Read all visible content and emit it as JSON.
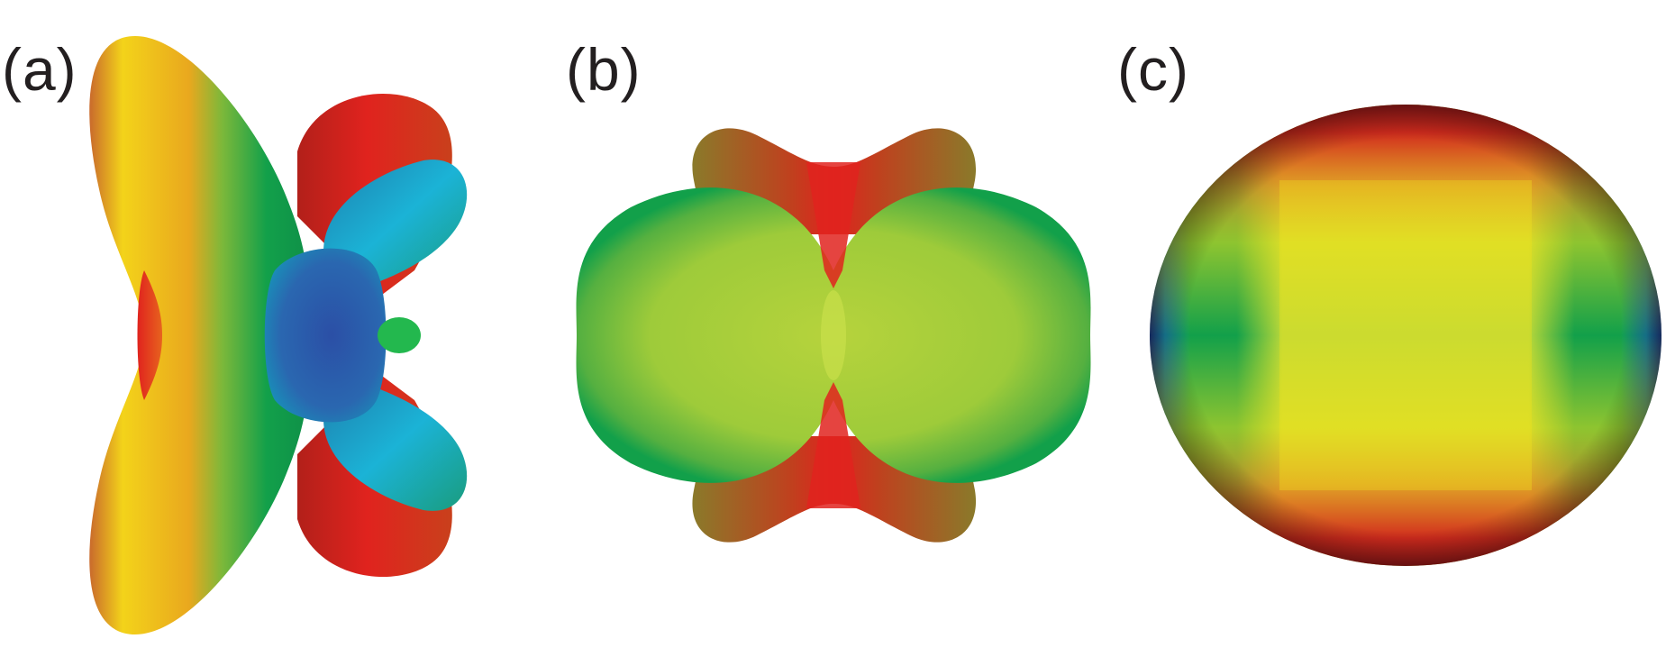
{
  "figure": {
    "panels": [
      {
        "label": "(a)"
      },
      {
        "label": "(b)"
      },
      {
        "label": "(c)"
      }
    ],
    "colors": {
      "red": "#e0231e",
      "orange": "#f08a1e",
      "yellow": "#f3e21a",
      "yellow_green": "#a9cf3a",
      "green": "#12a04a",
      "cyan": "#1bb3d6",
      "blue": "#2b4fa6"
    }
  }
}
